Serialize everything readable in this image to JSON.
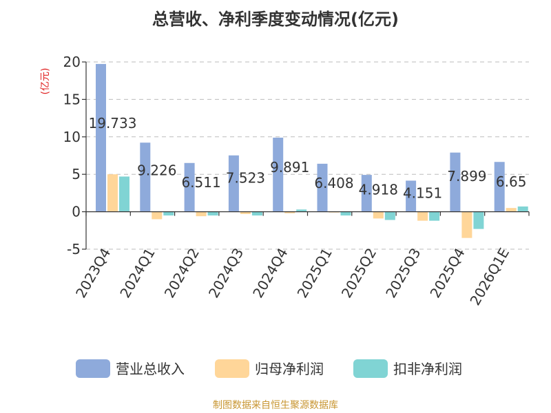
{
  "chart_data": {
    "type": "bar",
    "title": "总营收、净利季度变动情况(亿元)",
    "ylabel": "(亿元)",
    "xlabel": "",
    "ylim": [
      -5,
      20
    ],
    "yticks": [
      20,
      15,
      10,
      5,
      0,
      -5
    ],
    "grid": true,
    "legend_position": "bottom",
    "categories": [
      "2023Q4",
      "2024Q1",
      "2024Q2",
      "2024Q3",
      "2024Q4",
      "2025Q1",
      "2025Q2",
      "2025Q3",
      "2025Q4",
      "2026Q1E"
    ],
    "series": [
      {
        "name": "营业总收入",
        "color": "#8eaadb",
        "values": [
          19.733,
          9.226,
          6.511,
          7.523,
          9.891,
          6.408,
          4.918,
          4.151,
          7.899,
          6.65
        ],
        "labels": [
          "19.733",
          "9.226",
          "6.511",
          "7.523",
          "9.891",
          "6.408",
          "4.918",
          "4.151",
          "7.899",
          "6.65"
        ]
      },
      {
        "name": "归母净利润",
        "color": "#ffd699",
        "values": [
          5.0,
          -1.0,
          -0.6,
          -0.3,
          -0.2,
          -0.1,
          -0.9,
          -1.2,
          -3.5,
          0.5
        ]
      },
      {
        "name": "扣非净利润",
        "color": "#80d4d4",
        "values": [
          4.7,
          -0.5,
          -0.5,
          -0.5,
          0.3,
          -0.5,
          -1.1,
          -1.2,
          -2.3,
          0.7
        ]
      }
    ]
  },
  "source": {
    "text": "制图数据来自恒生聚源数据库",
    "color": "#c89632"
  },
  "colors": {
    "axis": "#333333",
    "grid": "#bbbbbb",
    "ylabel": "#e02020",
    "title": "#333333"
  }
}
